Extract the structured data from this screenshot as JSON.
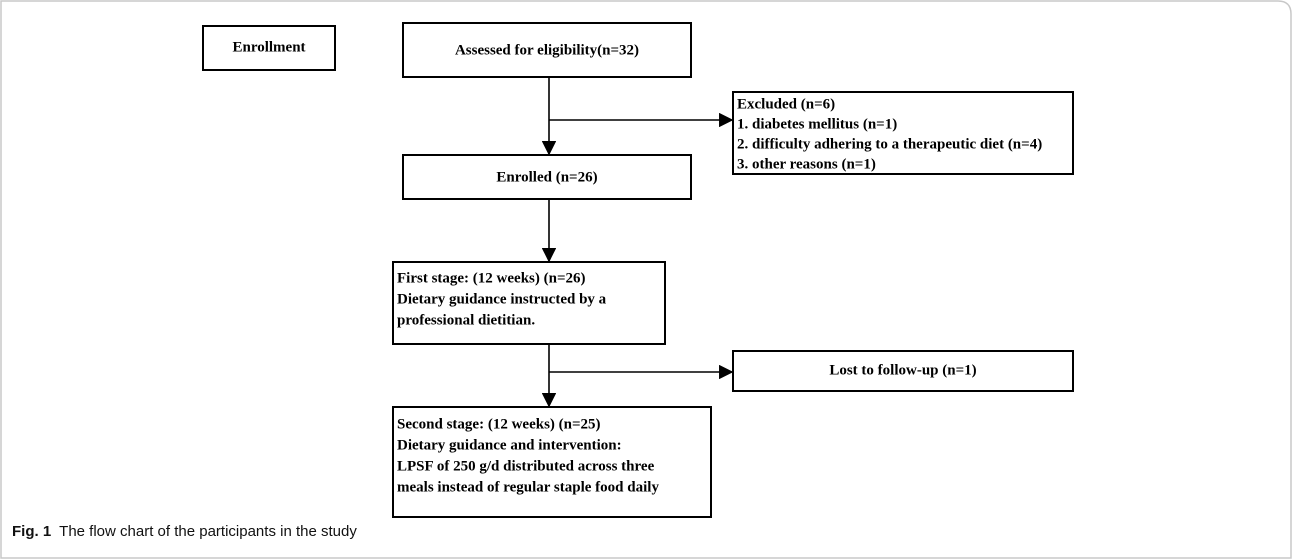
{
  "nodes": [
    {
      "label": "Enrollment"
    },
    {
      "label": "Assessed for eligibility(n=32)"
    },
    {
      "lines": [
        "Excluded (n=6)",
        "1. diabetes mellitus (n=1)",
        "2. difficulty adhering to a therapeutic diet (n=4)",
        "3. other reasons (n=1)"
      ]
    },
    {
      "label": "Enrolled (n=26)"
    },
    {
      "lines": [
        "First stage: (12 weeks) (n=26)",
        "Dietary guidance instructed by a",
        "professional dietitian."
      ]
    },
    {
      "label": "Lost to follow-up (n=1)"
    },
    {
      "lines": [
        "Second stage: (12 weeks) (n=25)",
        "Dietary guidance and intervention:",
        "LPSF of 250 g/d distributed across three",
        "meals instead of regular staple food daily"
      ]
    }
  ],
  "caption": {
    "label": "Fig. 1",
    "text": "The flow chart of the participants in the study"
  }
}
